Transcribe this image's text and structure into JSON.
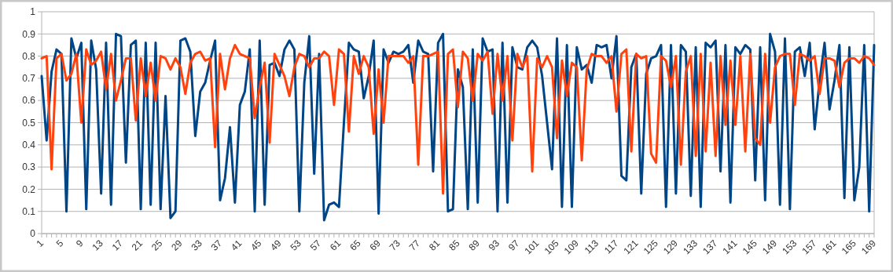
{
  "chart_data": {
    "type": "line",
    "categories": [
      "1",
      null,
      null,
      null,
      "5",
      null,
      null,
      null,
      "9",
      null,
      null,
      null,
      "13",
      null,
      null,
      null,
      "17",
      null,
      null,
      null,
      "21",
      null,
      null,
      null,
      "25",
      null,
      null,
      null,
      "29",
      null,
      null,
      null,
      "33",
      null,
      null,
      null,
      "37",
      null,
      null,
      null,
      "41",
      null,
      null,
      null,
      "45",
      null,
      null,
      null,
      "49",
      null,
      null,
      null,
      "53",
      null,
      null,
      null,
      "57",
      null,
      null,
      null,
      "61",
      null,
      null,
      null,
      "65",
      null,
      null,
      null,
      "69",
      null,
      null,
      null,
      "73",
      null,
      null,
      null,
      "77",
      null,
      null,
      null,
      "81",
      null,
      null,
      null,
      "85",
      null,
      null,
      null,
      "89",
      null,
      null,
      null,
      "93",
      null,
      null,
      null,
      "97",
      null,
      null,
      null,
      "101",
      null,
      null,
      null,
      "105",
      null,
      null,
      null,
      "109",
      null,
      null,
      null,
      "113",
      null,
      null,
      null,
      "117",
      null,
      null,
      null,
      "121",
      null,
      null,
      null,
      "125",
      null,
      null,
      null,
      "129",
      null,
      null,
      null,
      "133",
      null,
      null,
      null,
      "137",
      null,
      null,
      null,
      "141",
      null,
      null,
      null,
      "145",
      null,
      null,
      null,
      "149",
      null,
      null,
      null,
      "153",
      null,
      null,
      null,
      "157",
      null,
      null,
      null,
      "161",
      null,
      null,
      null,
      "165",
      null,
      null,
      null,
      "169"
    ],
    "series": [
      {
        "color": "#004586",
        "values": [
          0.71,
          0.42,
          0.73,
          0.83,
          0.81,
          0.1,
          0.88,
          0.79,
          0.86,
          0.11,
          0.87,
          0.74,
          0.18,
          0.86,
          0.13,
          0.9,
          0.89,
          0.32,
          0.85,
          0.87,
          0.11,
          0.86,
          0.13,
          0.86,
          0.11,
          0.62,
          0.07,
          0.1,
          0.87,
          0.88,
          0.82,
          0.44,
          0.64,
          0.68,
          0.78,
          0.87,
          0.15,
          0.25,
          0.48,
          0.14,
          0.58,
          0.64,
          0.83,
          0.1,
          0.87,
          0.13,
          0.76,
          0.77,
          0.71,
          0.83,
          0.87,
          0.83,
          0.1,
          0.68,
          0.89,
          0.27,
          0.81,
          0.06,
          0.13,
          0.14,
          0.12,
          0.5,
          0.86,
          0.83,
          0.82,
          0.61,
          0.71,
          0.87,
          0.09,
          0.83,
          0.77,
          0.82,
          0.81,
          0.82,
          0.85,
          0.68,
          0.87,
          0.82,
          0.81,
          0.28,
          0.86,
          0.9,
          0.1,
          0.11,
          0.74,
          0.66,
          0.11,
          0.83,
          0.14,
          0.88,
          0.82,
          0.83,
          0.1,
          0.86,
          0.14,
          0.84,
          0.75,
          0.74,
          0.84,
          0.87,
          0.84,
          0.71,
          0.5,
          0.29,
          0.88,
          0.12,
          0.85,
          0.12,
          0.84,
          0.74,
          0.76,
          0.68,
          0.85,
          0.84,
          0.85,
          0.7,
          0.89,
          0.26,
          0.24,
          0.75,
          0.81,
          0.18,
          0.72,
          0.79,
          0.8,
          0.85,
          0.12,
          0.85,
          0.18,
          0.85,
          0.82,
          0.17,
          0.84,
          0.12,
          0.86,
          0.84,
          0.87,
          0.28,
          0.85,
          0.14,
          0.84,
          0.81,
          0.85,
          0.83,
          0.24,
          0.84,
          0.15,
          0.9,
          0.82,
          0.13,
          0.88,
          0.11,
          0.82,
          0.84,
          0.71,
          0.86,
          0.47,
          0.69,
          0.86,
          0.56,
          0.69,
          0.85,
          0.16,
          0.84,
          0.15,
          0.3,
          0.85,
          0.1,
          0.85
        ]
      },
      {
        "color": "#ff420e",
        "values": [
          0.79,
          0.8,
          0.29,
          0.79,
          0.81,
          0.69,
          0.72,
          0.81,
          0.5,
          0.83,
          0.76,
          0.78,
          0.82,
          0.65,
          0.81,
          0.6,
          0.69,
          0.79,
          0.79,
          0.51,
          0.79,
          0.62,
          0.77,
          0.6,
          0.8,
          0.79,
          0.74,
          0.79,
          0.75,
          0.63,
          0.77,
          0.81,
          0.82,
          0.78,
          0.79,
          0.39,
          0.81,
          0.65,
          0.79,
          0.85,
          0.81,
          0.8,
          0.79,
          0.52,
          0.66,
          0.77,
          0.41,
          0.81,
          0.76,
          0.71,
          0.62,
          0.75,
          0.81,
          0.8,
          0.75,
          0.79,
          0.79,
          0.82,
          0.8,
          0.58,
          0.83,
          0.81,
          0.46,
          0.8,
          0.72,
          0.8,
          0.75,
          0.45,
          0.74,
          0.5,
          0.8,
          0.8,
          0.8,
          0.8,
          0.77,
          0.8,
          0.31,
          0.8,
          0.8,
          0.81,
          0.82,
          0.18,
          0.81,
          0.83,
          0.57,
          0.82,
          0.79,
          0.6,
          0.81,
          0.78,
          0.82,
          0.54,
          0.81,
          0.6,
          0.8,
          0.42,
          0.81,
          0.75,
          0.8,
          0.28,
          0.79,
          0.75,
          0.8,
          0.75,
          0.43,
          0.78,
          0.62,
          0.77,
          0.75,
          0.33,
          0.74,
          0.81,
          0.8,
          0.8,
          0.77,
          0.8,
          0.55,
          0.81,
          0.83,
          0.37,
          0.81,
          0.79,
          0.8,
          0.36,
          0.32,
          0.8,
          0.78,
          0.66,
          0.8,
          0.31,
          0.73,
          0.8,
          0.35,
          0.81,
          0.37,
          0.77,
          0.35,
          0.8,
          0.49,
          0.78,
          0.49,
          0.8,
          0.37,
          0.81,
          0.43,
          0.4,
          0.81,
          0.5,
          0.75,
          0.8,
          0.81,
          0.81,
          0.58,
          0.81,
          0.8,
          0.78,
          0.8,
          0.63,
          0.79,
          0.79,
          0.78,
          0.66,
          0.77,
          0.79,
          0.79,
          0.77,
          0.8,
          0.79,
          0.76
        ]
      }
    ],
    "ylim": [
      0,
      1
    ],
    "yticks": [
      0,
      0.1,
      0.2,
      0.3,
      0.4,
      0.5,
      0.6,
      0.7,
      0.8,
      0.9,
      1
    ],
    "grid": "y",
    "line_style": "solid"
  }
}
